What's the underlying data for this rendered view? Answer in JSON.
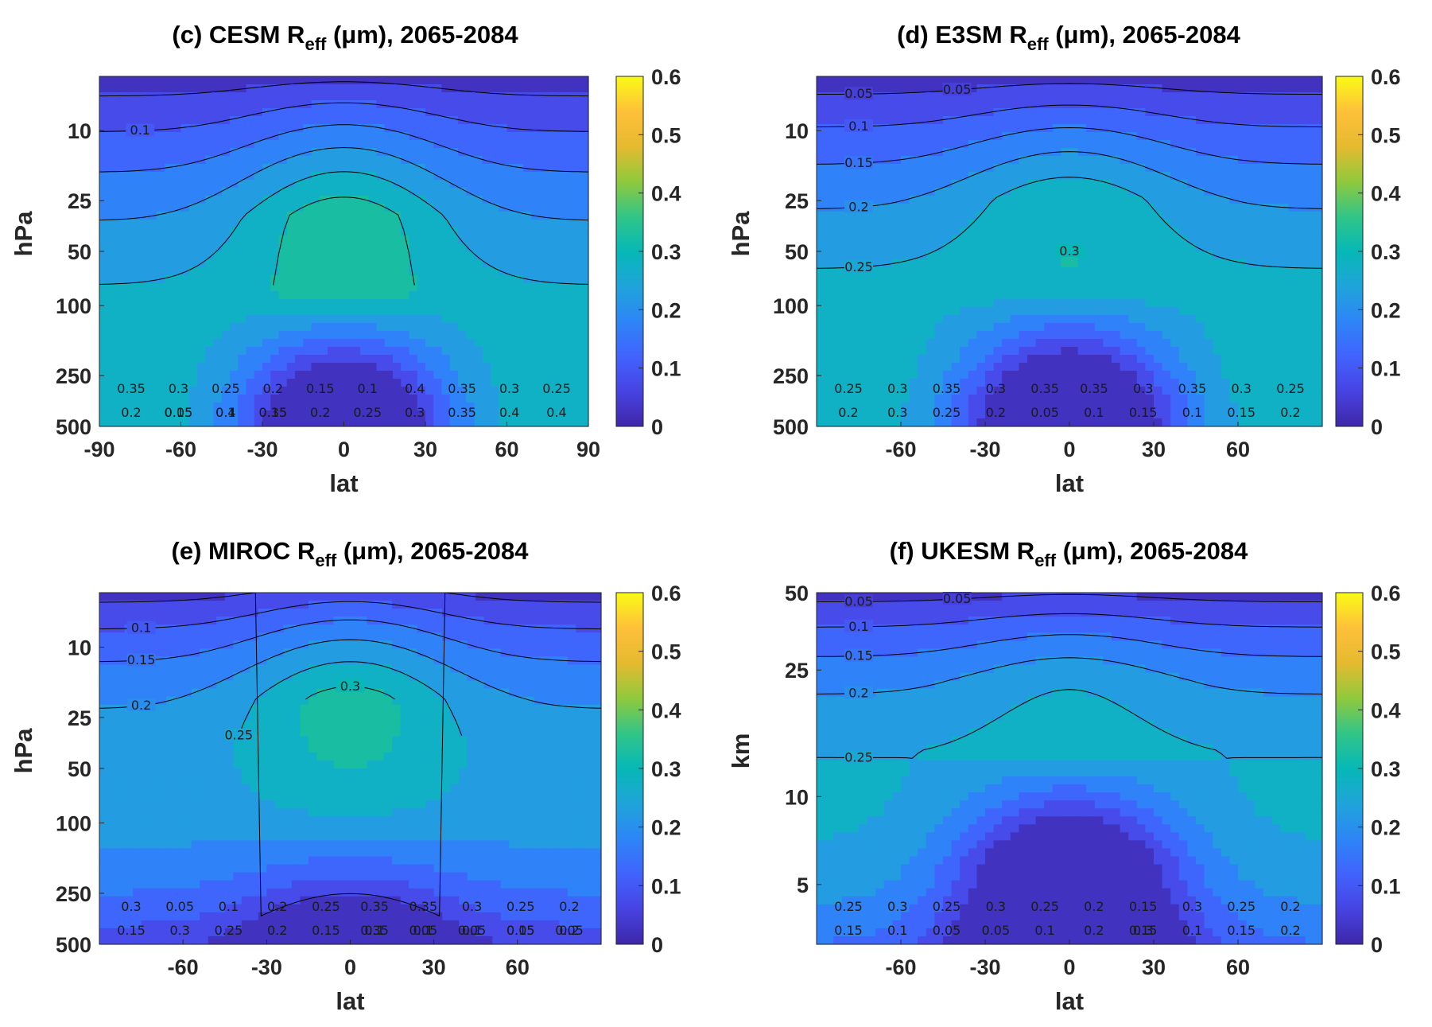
{
  "colormap": {
    "name": "parula",
    "stops": [
      "#3e26a8",
      "#4743e2",
      "#4163fd",
      "#2d85f6",
      "#1fa4da",
      "#06b8b6",
      "#32c587",
      "#90c93c",
      "#e5ba2f",
      "#fec039",
      "#f9fb15"
    ]
  },
  "chart_data": [
    {
      "type": "heatmap",
      "panel": "c",
      "title": "(c) CESM R",
      "title_sub": "eff",
      "title_rest": " (μm), 2065-2084",
      "xlabel": "lat",
      "ylabel": "hPa",
      "xlim": [
        -90,
        90
      ],
      "x_ticks": [
        "-90",
        "-60",
        "-30",
        "0",
        "30",
        "60",
        "90"
      ],
      "x_tick_values": [
        -90,
        -60,
        -30,
        0,
        30,
        60,
        90
      ],
      "y_ticks": [
        "10",
        "25",
        "50",
        "100",
        "250",
        "500"
      ],
      "colorbar": {
        "range": [
          0,
          0.6
        ],
        "ticks": [
          "0.6",
          "0.5",
          "0.4",
          "0.3",
          "0.2",
          "0.1",
          "0"
        ]
      },
      "contour_levels": [
        0.05,
        0.1,
        0.15,
        0.2,
        0.25,
        0.3,
        0.35,
        0.4
      ],
      "bands": [
        {
          "level": 0.1,
          "top": [
            20,
            21,
            22,
            25,
            31,
            39,
            48,
            59,
            75,
            88,
            92,
            95,
            99,
            100,
            100,
            100,
            100
          ],
          "label": "0.1"
        },
        {
          "level": 0.15,
          "top": [
            28,
            30,
            33,
            37,
            44,
            52,
            61,
            71,
            82,
            91,
            96,
            99,
            100,
            100,
            100,
            100,
            100
          ],
          "label": "0.15"
        },
        {
          "level": 0.2,
          "top": [
            31,
            33,
            37,
            41,
            48,
            56,
            65,
            74,
            85,
            93,
            98,
            100,
            100,
            100,
            100,
            100,
            100
          ],
          "label": "0.2"
        },
        {
          "level": 0.25,
          "top": [
            33,
            35,
            39,
            44,
            51,
            59,
            68,
            77,
            88,
            95,
            100,
            100,
            100,
            100,
            100,
            100,
            100
          ],
          "label": "0.25"
        },
        {
          "level": 0.3,
          "top": [
            36,
            38,
            42,
            47,
            54,
            62,
            71,
            80,
            92,
            98,
            100,
            100,
            100,
            100,
            100,
            100,
            100
          ],
          "label": "0.3"
        },
        {
          "level": 0.35,
          "top": [
            39,
            41,
            45,
            50,
            57,
            65,
            74,
            84,
            95,
            100,
            100,
            100,
            100,
            100,
            100,
            100,
            100
          ],
          "label": "0.35"
        },
        {
          "level": 0.4,
          "top": [
            46,
            48,
            52,
            57,
            64,
            72,
            80,
            90,
            100,
            100,
            100,
            100,
            100,
            100,
            100,
            100,
            100
          ],
          "label": "0.4"
        }
      ],
      "labels": [
        "0.1",
        "0.05",
        "0.1",
        "0.15",
        "0.2",
        "0.25",
        "0.3",
        "0.35",
        "0.4",
        "0.4",
        "0.35",
        "0.3",
        "0.25",
        "0.2",
        "0.15",
        "0.1",
        "0.4",
        "0.35",
        "0.3",
        "0.25",
        "0.2",
        "0.15",
        "0.4",
        "0.35"
      ]
    },
    {
      "type": "heatmap",
      "panel": "d",
      "title": "(d) E3SM R",
      "title_sub": "eff",
      "title_rest": " (μm), 2065-2084",
      "xlabel": "lat",
      "ylabel": "hPa",
      "xlim": [
        -90,
        90
      ],
      "x_ticks": [
        "-60",
        "-30",
        "0",
        "30",
        "60"
      ],
      "x_tick_values": [
        -60,
        -30,
        0,
        30,
        60
      ],
      "y_ticks": [
        "10",
        "25",
        "50",
        "100",
        "250",
        "500"
      ],
      "colorbar": {
        "range": [
          0,
          0.6
        ],
        "ticks": [
          "0.6",
          "0.5",
          "0.4",
          "0.3",
          "0.2",
          "0.1",
          "0"
        ]
      },
      "contour_levels": [
        0.05,
        0.1,
        0.15,
        0.2,
        0.25,
        0.3,
        0.35
      ],
      "labels": [
        "0.05",
        "0.05",
        "0.1",
        "0.15",
        "0.2",
        "0.25",
        "0.3",
        "0.1",
        "0.15",
        "0.2",
        "0.25",
        "0.3",
        "0.35",
        "0.3",
        "0.35",
        "0.35",
        "0.3",
        "0.35",
        "0.3",
        "0.25",
        "0.2",
        "0.3",
        "0.25",
        "0.2",
        "0.05",
        "0.1",
        "0.15"
      ]
    },
    {
      "type": "heatmap",
      "panel": "e",
      "title": "(e) MIROC R",
      "title_sub": "eff",
      "title_rest": " (μm), 2065-2084",
      "xlabel": "lat",
      "ylabel": "hPa",
      "xlim": [
        -90,
        90
      ],
      "x_ticks": [
        "-60",
        "-30",
        "0",
        "30",
        "60"
      ],
      "x_tick_values": [
        -60,
        -30,
        0,
        30,
        60
      ],
      "y_ticks": [
        "10",
        "25",
        "50",
        "100",
        "250",
        "500"
      ],
      "colorbar": {
        "range": [
          0,
          0.6
        ],
        "ticks": [
          "0.6",
          "0.5",
          "0.4",
          "0.3",
          "0.2",
          "0.1",
          "0"
        ]
      },
      "contour_levels": [
        0.05,
        0.1,
        0.15,
        0.2,
        0.25,
        0.3,
        0.35
      ],
      "labels": [
        "0.1",
        "0.15",
        "0.2",
        "0.25",
        "0.3",
        "0.35",
        "0.05",
        "0.1",
        "0.15",
        "0.2",
        "0.3",
        "0.05",
        "0.1",
        "0.2",
        "0.25",
        "0.35",
        "0.35",
        "0.3",
        "0.25",
        "0.2",
        "0.15",
        "0.3",
        "0.25",
        "0.2",
        "0.15",
        "0.1",
        "0.1",
        "0.05",
        "0.05",
        "0.05"
      ]
    },
    {
      "type": "heatmap",
      "panel": "f",
      "title": "(f) UKESM R",
      "title_sub": "eff",
      "title_rest": " (μm), 2065-2084",
      "xlabel": "lat",
      "ylabel": "km",
      "xlim": [
        -90,
        90
      ],
      "x_ticks": [
        "-60",
        "-30",
        "0",
        "30",
        "60"
      ],
      "x_tick_values": [
        -60,
        -30,
        0,
        30,
        60
      ],
      "y_ticks": [
        "50",
        "25",
        "10",
        "5"
      ],
      "colorbar": {
        "range": [
          0,
          0.6
        ],
        "ticks": [
          "0.6",
          "0.5",
          "0.4",
          "0.3",
          "0.2",
          "0.1",
          "0"
        ]
      },
      "contour_levels": [
        0.05,
        0.1,
        0.15,
        0.2,
        0.25,
        0.3
      ],
      "labels": [
        "0.05",
        "0.05",
        "0.1",
        "0.15",
        "0.2",
        "0.25",
        "0.3",
        "0.1",
        "0.15",
        "0.2",
        "0.25",
        "0.3",
        "0.25",
        "0.3",
        "0.25",
        "0.2",
        "0.15",
        "0.3",
        "0.25",
        "0.2",
        "0.15",
        "0.1",
        "0.05",
        "0.05",
        "0.1",
        "0.2",
        "0.15"
      ]
    }
  ]
}
